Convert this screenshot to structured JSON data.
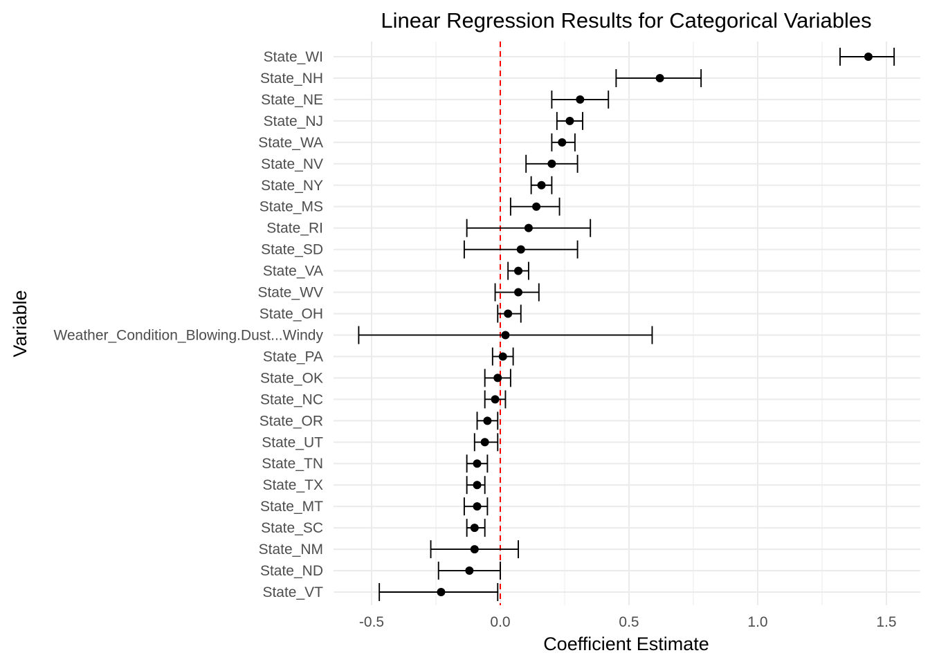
{
  "chart_data": {
    "type": "scatter",
    "subtype": "coefficient-errorbar",
    "title": "Linear Regression Results for Categorical Variables",
    "xlabel": "Coefficient Estimate",
    "ylabel": "Variable",
    "xlim": [
      -0.64,
      1.64
    ],
    "x_ticks": [
      -0.5,
      0.0,
      0.5,
      1.0,
      1.5
    ],
    "x_tick_labels": [
      "-0.5",
      "0.0",
      "0.5",
      "1.0",
      "1.5"
    ],
    "reference_line": {
      "x": 0,
      "color": "#ff0000",
      "style": "dashed"
    },
    "grid": true,
    "rows": [
      {
        "label": "State_WI",
        "estimate": 1.43,
        "low": 1.32,
        "high": 1.53
      },
      {
        "label": "State_NH",
        "estimate": 0.62,
        "low": 0.45,
        "high": 0.78
      },
      {
        "label": "State_NE",
        "estimate": 0.31,
        "low": 0.2,
        "high": 0.42
      },
      {
        "label": "State_NJ",
        "estimate": 0.27,
        "low": 0.22,
        "high": 0.32
      },
      {
        "label": "State_WA",
        "estimate": 0.24,
        "low": 0.2,
        "high": 0.29
      },
      {
        "label": "State_NV",
        "estimate": 0.2,
        "low": 0.1,
        "high": 0.3
      },
      {
        "label": "State_NY",
        "estimate": 0.16,
        "low": 0.12,
        "high": 0.2
      },
      {
        "label": "State_MS",
        "estimate": 0.14,
        "low": 0.04,
        "high": 0.23
      },
      {
        "label": "State_RI",
        "estimate": 0.11,
        "low": -0.13,
        "high": 0.35
      },
      {
        "label": "State_SD",
        "estimate": 0.08,
        "low": -0.14,
        "high": 0.3
      },
      {
        "label": "State_VA",
        "estimate": 0.07,
        "low": 0.03,
        "high": 0.11
      },
      {
        "label": "State_WV",
        "estimate": 0.07,
        "low": -0.02,
        "high": 0.15
      },
      {
        "label": "State_OH",
        "estimate": 0.03,
        "low": -0.01,
        "high": 0.08
      },
      {
        "label": "Weather_Condition_Blowing.Dust...Windy",
        "estimate": 0.02,
        "low": -0.55,
        "high": 0.59
      },
      {
        "label": "State_PA",
        "estimate": 0.01,
        "low": -0.03,
        "high": 0.05
      },
      {
        "label": "State_OK",
        "estimate": -0.01,
        "low": -0.06,
        "high": 0.04
      },
      {
        "label": "State_NC",
        "estimate": -0.02,
        "low": -0.06,
        "high": 0.02
      },
      {
        "label": "State_OR",
        "estimate": -0.05,
        "low": -0.09,
        "high": -0.01
      },
      {
        "label": "State_UT",
        "estimate": -0.06,
        "low": -0.1,
        "high": -0.01
      },
      {
        "label": "State_TN",
        "estimate": -0.09,
        "low": -0.13,
        "high": -0.05
      },
      {
        "label": "State_TX",
        "estimate": -0.09,
        "low": -0.13,
        "high": -0.06
      },
      {
        "label": "State_MT",
        "estimate": -0.09,
        "low": -0.14,
        "high": -0.05
      },
      {
        "label": "State_SC",
        "estimate": -0.1,
        "low": -0.13,
        "high": -0.06
      },
      {
        "label": "State_NM",
        "estimate": -0.1,
        "low": -0.27,
        "high": 0.07
      },
      {
        "label": "State_ND",
        "estimate": -0.12,
        "low": -0.24,
        "high": 0.0
      },
      {
        "label": "State_VT",
        "estimate": -0.23,
        "low": -0.47,
        "high": -0.01
      }
    ]
  }
}
